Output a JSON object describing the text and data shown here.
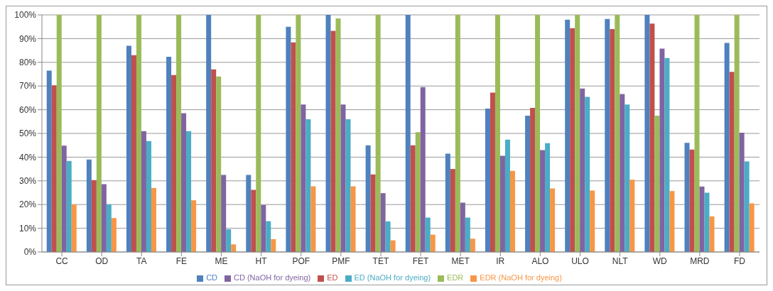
{
  "chart_data": {
    "type": "bar",
    "categories": [
      "CC",
      "OD",
      "TA",
      "FE",
      "ME",
      "HT",
      "POF",
      "PMF",
      "TET",
      "FET",
      "MET",
      "IR",
      "ALO",
      "ULO",
      "NLT",
      "WD",
      "MRD",
      "FD"
    ],
    "series": [
      {
        "name": "CD",
        "color": "#4f81bd",
        "values": [
          76.5,
          39,
          87,
          82.3,
          100,
          32.5,
          95,
          100,
          45,
          100,
          41.5,
          60.5,
          57.5,
          98,
          98.3,
          100,
          46,
          88.2
        ]
      },
      {
        "name": "ED",
        "color": "#c0504d",
        "values": [
          70.3,
          30.3,
          83,
          74.6,
          77,
          26.2,
          88.4,
          93.3,
          32.7,
          45,
          35,
          67.2,
          60.8,
          94.4,
          94,
          96.3,
          43.2,
          76
        ]
      },
      {
        "name": "EDR",
        "color": "#9bbb59",
        "values": [
          100,
          100,
          100,
          100,
          74,
          100,
          100,
          98.5,
          100,
          50.5,
          100,
          100,
          100,
          100,
          100,
          57.5,
          100,
          100
        ]
      },
      {
        "name": "CD (NaOH for dyeing)",
        "color": "#8064a2",
        "values": [
          44.8,
          28.6,
          51,
          58.5,
          32.5,
          19.8,
          62.2,
          62.2,
          24.8,
          69.5,
          20.8,
          40.6,
          43,
          68.9,
          66.6,
          85.8,
          27.6,
          50.3
        ]
      },
      {
        "name": "ED (NaOH for dyeing)",
        "color": "#4bacc6",
        "values": [
          38.4,
          20.1,
          46.8,
          51,
          9.6,
          13,
          56,
          56,
          12.9,
          14.5,
          14.5,
          47.4,
          45.9,
          65.4,
          62.2,
          81.8,
          25,
          38.2
        ]
      },
      {
        "name": "EDR (NaOH for dyeing)",
        "color": "#f79646",
        "values": [
          20,
          14.3,
          27,
          21.8,
          3.2,
          5.4,
          27.7,
          27.7,
          4.9,
          7.3,
          5.6,
          34.2,
          26.8,
          25.9,
          30.5,
          25.7,
          15,
          20.5
        ]
      }
    ],
    "ylim": [
      0,
      100
    ],
    "yticks": [
      {
        "value": 0,
        "label": "0%"
      },
      {
        "value": 10,
        "label": "10%"
      },
      {
        "value": 20,
        "label": "20%"
      },
      {
        "value": 30,
        "label": "30%"
      },
      {
        "value": 40,
        "label": "40%"
      },
      {
        "value": 50,
        "label": "50%"
      },
      {
        "value": 60,
        "label": "60%"
      },
      {
        "value": 70,
        "label": "70%"
      },
      {
        "value": 80,
        "label": "80%"
      },
      {
        "value": 90,
        "label": "90%"
      },
      {
        "value": 100,
        "label": "100%"
      }
    ],
    "grid": "y",
    "legend": "bottom"
  }
}
